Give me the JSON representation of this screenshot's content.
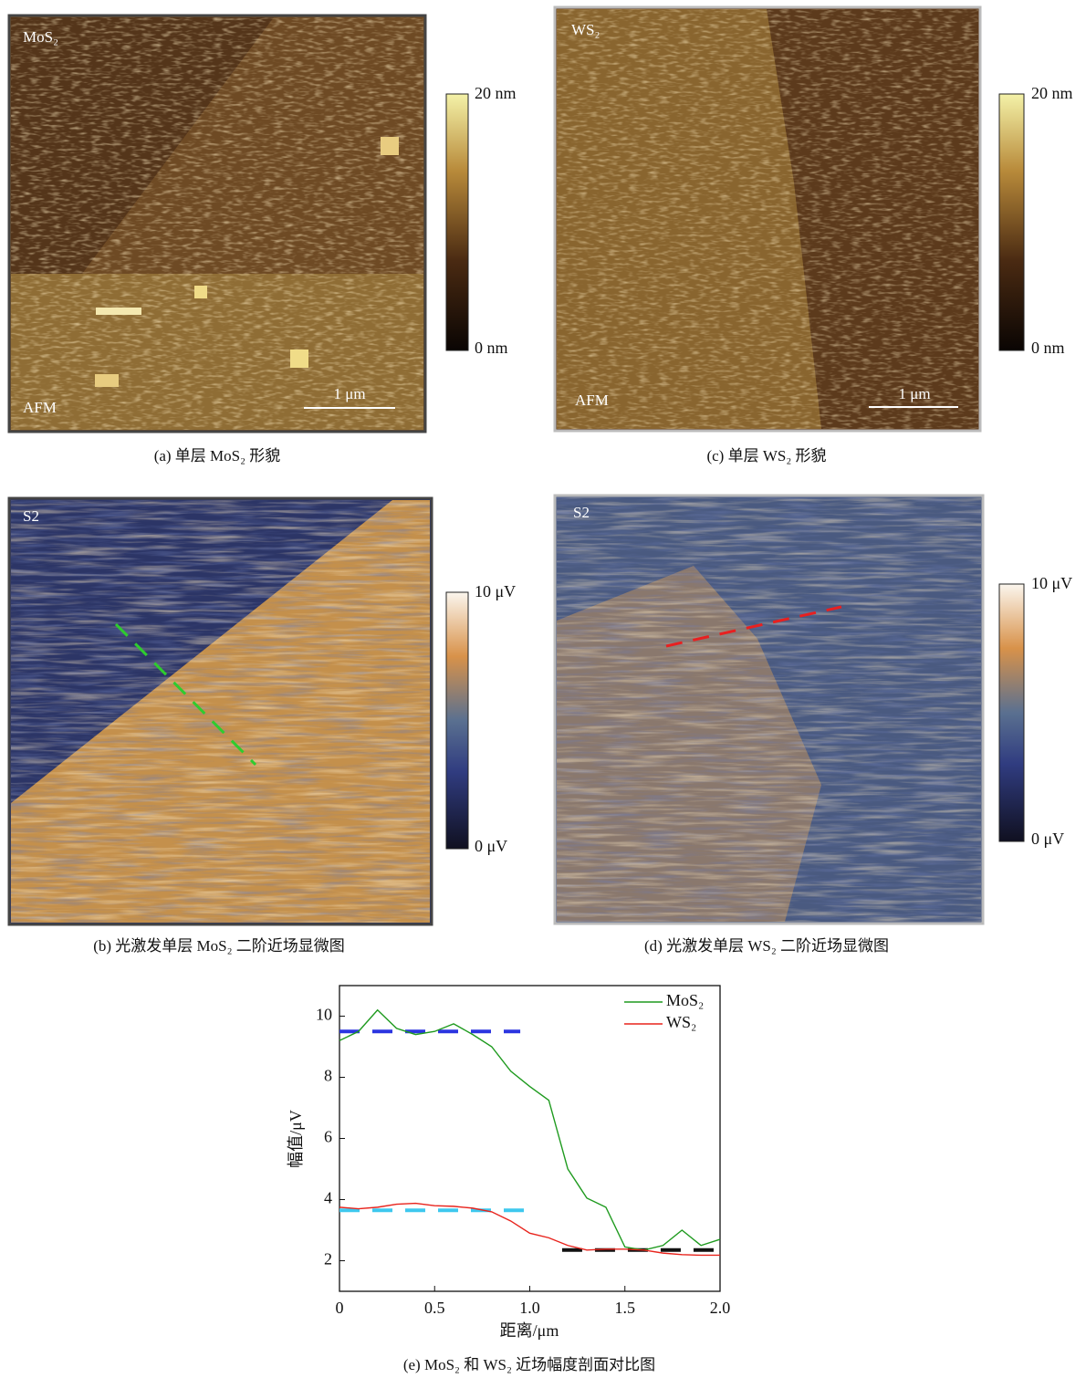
{
  "panels": [
    {
      "caption": "(a) 单层 MoS₂ 形貌",
      "corner_label": "MoS₂",
      "mode_label": "AFM",
      "scale_label": "1 μm",
      "colorbar_max": "20 nm",
      "colorbar_min": "0 nm"
    },
    {
      "caption": "(c) 单层 WS₂ 形貌",
      "corner_label": "WS₂",
      "mode_label": "AFM",
      "scale_label": "1 μm",
      "colorbar_max": "20 nm",
      "colorbar_min": "0 nm"
    },
    {
      "caption": "(b) 光激发单层 MoS₂ 二阶近场显微图",
      "corner_label": "S2",
      "colorbar_max": "10 μV",
      "colorbar_min": "0 μV"
    },
    {
      "caption": "(d) 光激发单层 WS₂ 二阶近场显微图",
      "corner_label": "S2",
      "colorbar_max": "10 μV",
      "colorbar_min": "0 μV"
    }
  ],
  "chart_data": {
    "type": "line",
    "caption": "(e) MoS₂ 和 WS₂ 近场幅度剖面对比图",
    "x_label": "距离/μm",
    "y_label": "幅值/μV",
    "x": [
      0,
      0.1,
      0.2,
      0.3,
      0.4,
      0.5,
      0.6,
      0.7,
      0.8,
      0.9,
      1.0,
      1.1,
      1.2,
      1.3,
      1.4,
      1.5,
      1.6,
      1.7,
      1.8,
      1.9,
      2.0
    ],
    "series": [
      {
        "name": "MoS₂",
        "color": "#1e9a1e",
        "values": [
          9.2,
          9.5,
          10.2,
          9.6,
          9.4,
          9.5,
          9.75,
          9.4,
          9.0,
          8.2,
          7.7,
          7.25,
          5.0,
          4.05,
          3.75,
          2.45,
          2.35,
          2.5,
          3.0,
          2.5,
          2.7
        ]
      },
      {
        "name": "WS₂",
        "color": "#e8231c",
        "values": [
          3.75,
          3.7,
          3.75,
          3.85,
          3.88,
          3.8,
          3.78,
          3.72,
          3.6,
          3.3,
          2.9,
          2.75,
          2.5,
          2.35,
          2.38,
          2.38,
          2.35,
          2.25,
          2.2,
          2.18,
          2.18
        ]
      }
    ],
    "reference_lines": [
      {
        "y": 9.5,
        "x": [
          0,
          0.95
        ],
        "color": "#2b35e0"
      },
      {
        "y": 3.65,
        "x": [
          0,
          0.97
        ],
        "color": "#3ec8ee"
      },
      {
        "y": 2.35,
        "x": [
          1.17,
          2.0
        ],
        "color": "#111111"
      }
    ],
    "xlim": [
      0,
      2
    ],
    "ylim": [
      1,
      11
    ],
    "xticks": [
      0,
      0.5,
      {
        "value": 1,
        "label": "1.0"
      },
      1.5,
      {
        "value": 2,
        "label": "2.0"
      }
    ],
    "yticks": [
      2,
      4,
      6,
      8,
      10
    ],
    "legend": "upper right"
  }
}
